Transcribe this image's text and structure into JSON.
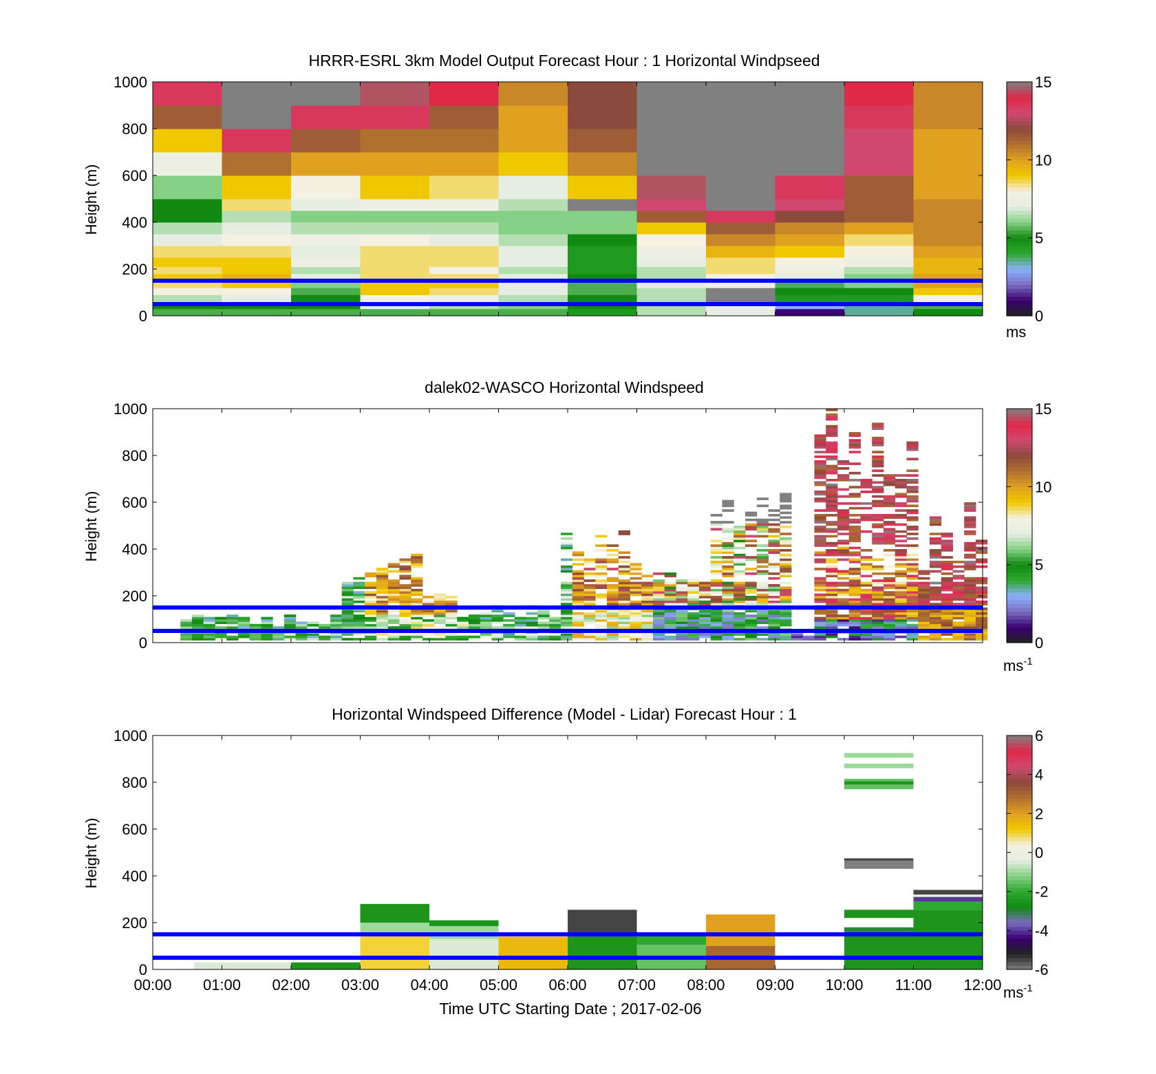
{
  "colors": {
    "blue_line": "#0000ff",
    "no_data": "#ffffff",
    "speed_scale": [
      "#222222",
      "#3a0070",
      "#7a6cc0",
      "#8ab0ff",
      "#2ea82e",
      "#128a12",
      "#84d084",
      "#e6eee2",
      "#f4f0e2",
      "#f0c800",
      "#e0a020",
      "#b07030",
      "#8c4a3c",
      "#d04870",
      "#e02848",
      "#808080"
    ],
    "diff_scale": [
      "#808080",
      "#222222",
      "#3a0070",
      "#7a6cc0",
      "#128a12",
      "#2ea82e",
      "#84d084",
      "#e6eee2",
      "#f4f0e2",
      "#f0c800",
      "#e0a020",
      "#b07030",
      "#8c4a3c",
      "#d04870",
      "#e02848",
      "#808080"
    ]
  },
  "chart_data": [
    {
      "type": "heatmap",
      "title": "HRRR-ESRL 3km Model Output   Forecast Hour : 1 Horizontal Windpseed",
      "ylabel": "Height (m)",
      "xlabel": "",
      "ylim": [
        0,
        1000
      ],
      "xlim": [
        0,
        12
      ],
      "yticks": [
        "0",
        "200",
        "400",
        "600",
        "800",
        "1000"
      ],
      "colorbar": {
        "min": 0,
        "max": 15,
        "ticks": [
          "0",
          "5",
          "10",
          "15"
        ],
        "unit": "ms",
        "unit_sup": ""
      },
      "reference_heights_m": [
        150,
        50
      ],
      "column_width_h": 1,
      "levels_m": [
        0,
        30,
        60,
        90,
        120,
        150,
        180,
        210,
        250,
        300,
        350,
        400,
        450,
        500,
        600,
        700,
        800,
        900,
        1000
      ],
      "columns": [
        [
          5.5,
          5,
          6.5,
          8,
          8.5,
          9,
          8.5,
          9,
          8.5,
          7,
          6.5,
          5,
          5,
          6,
          7.5,
          9,
          11.5,
          13.5
        ],
        [
          5.5,
          5,
          7,
          8,
          9,
          9.5,
          9,
          9,
          8.5,
          8,
          7,
          6.5,
          8.5,
          9,
          11,
          13.5,
          15,
          15
        ],
        [
          5.5,
          5,
          5,
          5.5,
          6,
          7,
          6.5,
          7.5,
          7,
          7.5,
          6.5,
          6,
          7,
          8,
          10,
          11.5,
          13.5,
          15
        ],
        [
          5.5,
          7,
          8,
          9,
          9,
          8.5,
          8.5,
          8.5,
          8.5,
          8,
          6.5,
          6,
          7.5,
          9,
          10,
          11,
          13.5,
          14.5
        ],
        [
          5.5,
          6.5,
          7.5,
          8.5,
          9,
          8.5,
          8,
          8.5,
          8.5,
          7,
          6.5,
          6,
          7.5,
          8.5,
          10,
          11,
          11.5,
          14
        ],
        [
          5.5,
          6,
          6.5,
          7,
          7,
          7,
          6.5,
          7,
          7,
          6.5,
          6,
          6,
          6.5,
          7,
          9,
          10,
          10,
          10.5
        ],
        [
          4.5,
          5,
          5,
          5.5,
          5.5,
          5,
          4.5,
          4.5,
          4.5,
          5,
          6,
          6,
          15,
          9,
          10.5,
          11.5,
          12,
          12
        ],
        [
          6.5,
          6.5,
          6.5,
          6.5,
          7,
          6.5,
          6.5,
          7,
          7.5,
          8,
          9,
          11.5,
          13,
          14.5,
          15,
          15,
          15,
          15
        ],
        [
          7,
          7.5,
          15,
          15,
          7.5,
          8,
          8.5,
          8.5,
          9.5,
          10.5,
          11.5,
          13.5,
          15,
          15,
          15,
          15,
          15,
          15
        ],
        [
          1,
          3,
          4.5,
          5,
          5.5,
          7,
          7.5,
          8,
          9,
          10,
          10.5,
          12,
          13,
          13.5,
          15,
          15,
          15,
          15
        ],
        [
          3.5,
          3.5,
          4.5,
          5,
          6,
          6,
          6.5,
          7.5,
          8,
          8.5,
          10,
          11.5,
          11.5,
          11.5,
          13,
          13,
          13.5,
          14
        ],
        [
          5,
          5.5,
          8,
          9,
          10,
          10,
          9.5,
          9.5,
          10,
          10.5,
          10.5,
          10.5,
          10.5,
          10,
          10,
          10,
          10.5,
          10.5
        ]
      ]
    },
    {
      "type": "heatmap",
      "title": "dalek02-WASCO  Horizontal Windspeed",
      "ylabel": "Height (m)",
      "xlabel": "",
      "ylim": [
        0,
        1000
      ],
      "xlim": [
        0,
        12
      ],
      "yticks": [
        "0",
        "200",
        "400",
        "600",
        "800",
        "1000"
      ],
      "colorbar": {
        "min": 0,
        "max": 15,
        "ticks": [
          "0",
          "5",
          "10",
          "15"
        ],
        "unit": "ms",
        "unit_sup": "-1"
      },
      "reference_heights_m": [
        150,
        50
      ]
    },
    {
      "type": "heatmap",
      "title": "Horizontal Windspeed Difference (Model - Lidar) Forecast Hour : 1",
      "ylabel": "Height (m)",
      "xlabel": "Time UTC  Starting Date ; 2017-02-06",
      "ylim": [
        0,
        1000
      ],
      "xlim": [
        0,
        12
      ],
      "xticks": [
        "00:00",
        "01:00",
        "02:00",
        "03:00",
        "04:00",
        "05:00",
        "06:00",
        "07:00",
        "08:00",
        "09:00",
        "10:00",
        "11:00",
        "12:00"
      ],
      "yticks": [
        "0",
        "200",
        "400",
        "600",
        "800",
        "1000"
      ],
      "colorbar": {
        "min": -6,
        "max": 6,
        "ticks": [
          "-6",
          "-4",
          "-2",
          "0",
          "2",
          "4",
          "6"
        ],
        "unit": "ms",
        "unit_sup": "-1"
      },
      "reference_heights_m": [
        150,
        50
      ],
      "cells": [
        {
          "t0": 0.6,
          "t1": 2,
          "z0": 0,
          "z1": 30,
          "v": -0.5
        },
        {
          "t0": 2,
          "t1": 3,
          "z0": 0,
          "z1": 30,
          "v": -2.5
        },
        {
          "t0": 3,
          "t1": 4,
          "z0": 0,
          "z1": 150,
          "v": 1
        },
        {
          "t0": 3,
          "t1": 4,
          "z0": 150,
          "z1": 200,
          "v": -1
        },
        {
          "t0": 3,
          "t1": 4,
          "z0": 200,
          "z1": 280,
          "v": -2.5
        },
        {
          "t0": 4,
          "t1": 5,
          "z0": 0,
          "z1": 130,
          "v": -0.5
        },
        {
          "t0": 4,
          "t1": 5,
          "z0": 130,
          "z1": 185,
          "v": -1
        },
        {
          "t0": 4,
          "t1": 5,
          "z0": 185,
          "z1": 210,
          "v": -2.5
        },
        {
          "t0": 5,
          "t1": 6,
          "z0": 0,
          "z1": 140,
          "v": 1.5
        },
        {
          "t0": 6,
          "t1": 7,
          "z0": 0,
          "z1": 140,
          "v": -2.5
        },
        {
          "t0": 6,
          "t1": 7,
          "z0": 140,
          "z1": 255,
          "v": -5.5
        },
        {
          "t0": 7,
          "t1": 8,
          "z0": 0,
          "z1": 105,
          "v": -1.5
        },
        {
          "t0": 7,
          "t1": 8,
          "z0": 105,
          "z1": 155,
          "v": -2
        },
        {
          "t0": 8,
          "t1": 9,
          "z0": 0,
          "z1": 100,
          "v": 3
        },
        {
          "t0": 8,
          "t1": 9,
          "z0": 100,
          "z1": 235,
          "v": 2
        },
        {
          "t0": 10,
          "t1": 11,
          "z0": 0,
          "z1": 160,
          "v": -2.5
        },
        {
          "t0": 10,
          "t1": 11,
          "z0": 160,
          "z1": 180,
          "v": -3
        },
        {
          "t0": 10,
          "t1": 11,
          "z0": 220,
          "z1": 255,
          "v": -2.5
        },
        {
          "t0": 10,
          "t1": 11,
          "z0": 430,
          "z1": 465,
          "v": -6
        },
        {
          "t0": 10,
          "t1": 11,
          "z0": 465,
          "z1": 475,
          "v": -5.5
        },
        {
          "t0": 10,
          "t1": 11,
          "z0": 770,
          "z1": 790,
          "v": -1.5
        },
        {
          "t0": 10,
          "t1": 11,
          "z0": 790,
          "z1": 805,
          "v": -2.5
        },
        {
          "t0": 10,
          "t1": 11,
          "z0": 805,
          "z1": 815,
          "v": -1.5
        },
        {
          "t0": 10,
          "t1": 11,
          "z0": 860,
          "z1": 880,
          "v": -1
        },
        {
          "t0": 10,
          "t1": 11,
          "z0": 905,
          "z1": 925,
          "v": -1
        },
        {
          "t0": 11,
          "t1": 12,
          "z0": 0,
          "z1": 255,
          "v": -2.5
        },
        {
          "t0": 11,
          "t1": 12,
          "z0": 255,
          "z1": 290,
          "v": -2
        },
        {
          "t0": 11,
          "t1": 12,
          "z0": 290,
          "z1": 310,
          "v": -4
        },
        {
          "t0": 11,
          "t1": 12,
          "z0": 310,
          "z1": 320,
          "v": 0
        },
        {
          "t0": 11,
          "t1": 12,
          "z0": 320,
          "z1": 340,
          "v": -5.5
        }
      ]
    }
  ]
}
